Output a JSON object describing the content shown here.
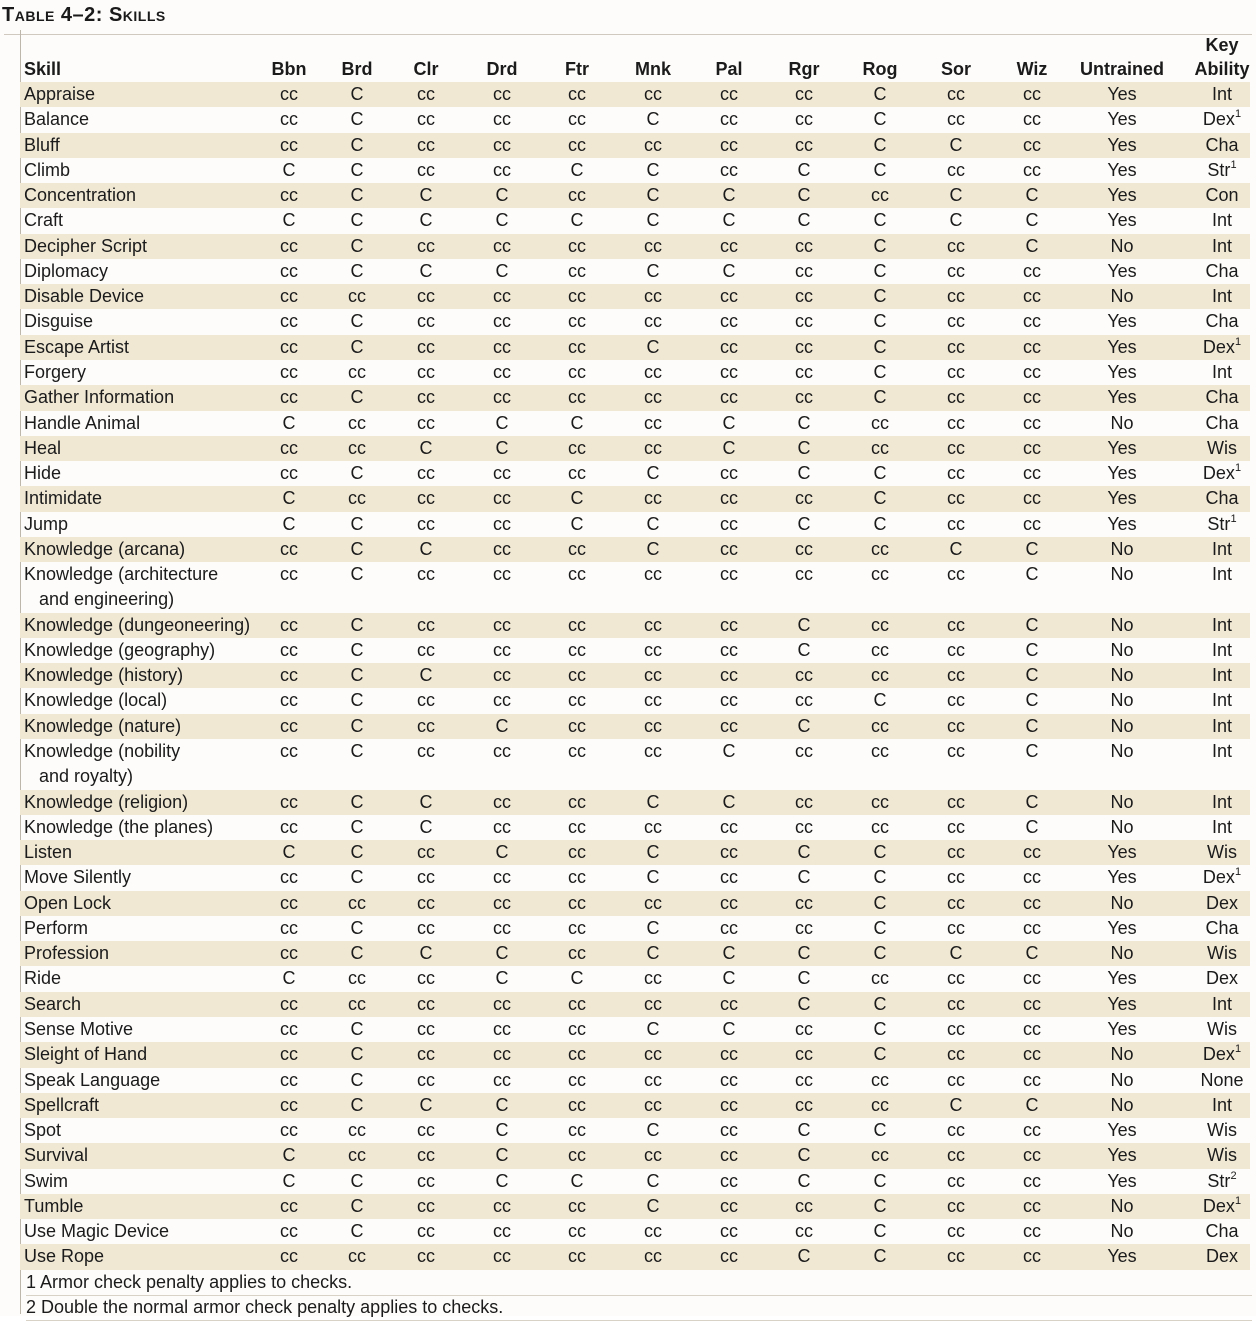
{
  "title": "Table 4–2: Skills",
  "header": {
    "skill": "Skill",
    "classes": [
      "Bbn",
      "Brd",
      "Clr",
      "Drd",
      "Ftr",
      "Mnk",
      "Pal",
      "Rgr",
      "Rog",
      "Sor",
      "Wiz"
    ],
    "untrained": "Untrained",
    "key_ability_line1": "Key",
    "key_ability_line2": "Ability"
  },
  "rows": [
    {
      "skill": "Appraise",
      "cols": [
        "cc",
        "C",
        "cc",
        "cc",
        "cc",
        "cc",
        "cc",
        "cc",
        "C",
        "cc",
        "cc"
      ],
      "untrained": "Yes",
      "key": "Int",
      "sup": ""
    },
    {
      "skill": "Balance",
      "cols": [
        "cc",
        "C",
        "cc",
        "cc",
        "cc",
        "C",
        "cc",
        "cc",
        "C",
        "cc",
        "cc"
      ],
      "untrained": "Yes",
      "key": "Dex",
      "sup": "1"
    },
    {
      "skill": "Bluff",
      "cols": [
        "cc",
        "C",
        "cc",
        "cc",
        "cc",
        "cc",
        "cc",
        "cc",
        "C",
        "C",
        "cc"
      ],
      "untrained": "Yes",
      "key": "Cha",
      "sup": ""
    },
    {
      "skill": "Climb",
      "cols": [
        "C",
        "C",
        "cc",
        "cc",
        "C",
        "C",
        "cc",
        "C",
        "C",
        "cc",
        "cc"
      ],
      "untrained": "Yes",
      "key": "Str",
      "sup": "1"
    },
    {
      "skill": "Concentration",
      "cols": [
        "cc",
        "C",
        "C",
        "C",
        "cc",
        "C",
        "C",
        "C",
        "cc",
        "C",
        "C"
      ],
      "untrained": "Yes",
      "key": "Con",
      "sup": ""
    },
    {
      "skill": "Craft",
      "cols": [
        "C",
        "C",
        "C",
        "C",
        "C",
        "C",
        "C",
        "C",
        "C",
        "C",
        "C"
      ],
      "untrained": "Yes",
      "key": "Int",
      "sup": ""
    },
    {
      "skill": "Decipher Script",
      "cols": [
        "cc",
        "C",
        "cc",
        "cc",
        "cc",
        "cc",
        "cc",
        "cc",
        "C",
        "cc",
        "C"
      ],
      "untrained": "No",
      "key": "Int",
      "sup": ""
    },
    {
      "skill": "Diplomacy",
      "cols": [
        "cc",
        "C",
        "C",
        "C",
        "cc",
        "C",
        "C",
        "cc",
        "C",
        "cc",
        "cc"
      ],
      "untrained": "Yes",
      "key": "Cha",
      "sup": ""
    },
    {
      "skill": "Disable Device",
      "cols": [
        "cc",
        "cc",
        "cc",
        "cc",
        "cc",
        "cc",
        "cc",
        "cc",
        "C",
        "cc",
        "cc"
      ],
      "untrained": "No",
      "key": "Int",
      "sup": ""
    },
    {
      "skill": "Disguise",
      "cols": [
        "cc",
        "C",
        "cc",
        "cc",
        "cc",
        "cc",
        "cc",
        "cc",
        "C",
        "cc",
        "cc"
      ],
      "untrained": "Yes",
      "key": "Cha",
      "sup": ""
    },
    {
      "skill": "Escape Artist",
      "cols": [
        "cc",
        "C",
        "cc",
        "cc",
        "cc",
        "C",
        "cc",
        "cc",
        "C",
        "cc",
        "cc"
      ],
      "untrained": "Yes",
      "key": "Dex",
      "sup": "1"
    },
    {
      "skill": "Forgery",
      "cols": [
        "cc",
        "cc",
        "cc",
        "cc",
        "cc",
        "cc",
        "cc",
        "cc",
        "C",
        "cc",
        "cc"
      ],
      "untrained": "Yes",
      "key": "Int",
      "sup": ""
    },
    {
      "skill": "Gather Information",
      "cols": [
        "cc",
        "C",
        "cc",
        "cc",
        "cc",
        "cc",
        "cc",
        "cc",
        "C",
        "cc",
        "cc"
      ],
      "untrained": "Yes",
      "key": "Cha",
      "sup": ""
    },
    {
      "skill": "Handle Animal",
      "cols": [
        "C",
        "cc",
        "cc",
        "C",
        "C",
        "cc",
        "C",
        "C",
        "cc",
        "cc",
        "cc"
      ],
      "untrained": "No",
      "key": "Cha",
      "sup": ""
    },
    {
      "skill": "Heal",
      "cols": [
        "cc",
        "cc",
        "C",
        "C",
        "cc",
        "cc",
        "C",
        "C",
        "cc",
        "cc",
        "cc"
      ],
      "untrained": "Yes",
      "key": "Wis",
      "sup": ""
    },
    {
      "skill": "Hide",
      "cols": [
        "cc",
        "C",
        "cc",
        "cc",
        "cc",
        "C",
        "cc",
        "C",
        "C",
        "cc",
        "cc"
      ],
      "untrained": "Yes",
      "key": "Dex",
      "sup": "1"
    },
    {
      "skill": "Intimidate",
      "cols": [
        "C",
        "cc",
        "cc",
        "cc",
        "C",
        "cc",
        "cc",
        "cc",
        "C",
        "cc",
        "cc"
      ],
      "untrained": "Yes",
      "key": "Cha",
      "sup": ""
    },
    {
      "skill": "Jump",
      "cols": [
        "C",
        "C",
        "cc",
        "cc",
        "C",
        "C",
        "cc",
        "C",
        "C",
        "cc",
        "cc"
      ],
      "untrained": "Yes",
      "key": "Str",
      "sup": "1"
    },
    {
      "skill": "Knowledge (arcana)",
      "cols": [
        "cc",
        "C",
        "C",
        "cc",
        "cc",
        "C",
        "cc",
        "cc",
        "cc",
        "C",
        "C"
      ],
      "untrained": "No",
      "key": "Int",
      "sup": ""
    },
    {
      "skill": "Knowledge (architecture",
      "skill2": "and engineering)",
      "cols": [
        "cc",
        "C",
        "cc",
        "cc",
        "cc",
        "cc",
        "cc",
        "cc",
        "cc",
        "cc",
        "C"
      ],
      "untrained": "No",
      "key": "Int",
      "sup": ""
    },
    {
      "skill": "Knowledge (dungeoneering)",
      "cols": [
        "cc",
        "C",
        "cc",
        "cc",
        "cc",
        "cc",
        "cc",
        "C",
        "cc",
        "cc",
        "C"
      ],
      "untrained": "No",
      "key": "Int",
      "sup": ""
    },
    {
      "skill": "Knowledge (geography)",
      "cols": [
        "cc",
        "C",
        "cc",
        "cc",
        "cc",
        "cc",
        "cc",
        "C",
        "cc",
        "cc",
        "C"
      ],
      "untrained": "No",
      "key": "Int",
      "sup": ""
    },
    {
      "skill": "Knowledge (history)",
      "cols": [
        "cc",
        "C",
        "C",
        "cc",
        "cc",
        "cc",
        "cc",
        "cc",
        "cc",
        "cc",
        "C"
      ],
      "untrained": "No",
      "key": "Int",
      "sup": ""
    },
    {
      "skill": "Knowledge (local)",
      "cols": [
        "cc",
        "C",
        "cc",
        "cc",
        "cc",
        "cc",
        "cc",
        "cc",
        "C",
        "cc",
        "C"
      ],
      "untrained": "No",
      "key": "Int",
      "sup": ""
    },
    {
      "skill": "Knowledge (nature)",
      "cols": [
        "cc",
        "C",
        "cc",
        "C",
        "cc",
        "cc",
        "cc",
        "C",
        "cc",
        "cc",
        "C"
      ],
      "untrained": "No",
      "key": "Int",
      "sup": ""
    },
    {
      "skill": "Knowledge (nobility",
      "skill2": "and royalty)",
      "cols": [
        "cc",
        "C",
        "cc",
        "cc",
        "cc",
        "cc",
        "C",
        "cc",
        "cc",
        "cc",
        "C"
      ],
      "untrained": "No",
      "key": "Int",
      "sup": ""
    },
    {
      "skill": "Knowledge (religion)",
      "cols": [
        "cc",
        "C",
        "C",
        "cc",
        "cc",
        "C",
        "C",
        "cc",
        "cc",
        "cc",
        "C"
      ],
      "untrained": "No",
      "key": "Int",
      "sup": ""
    },
    {
      "skill": "Knowledge (the planes)",
      "cols": [
        "cc",
        "C",
        "C",
        "cc",
        "cc",
        "cc",
        "cc",
        "cc",
        "cc",
        "cc",
        "C"
      ],
      "untrained": "No",
      "key": "Int",
      "sup": ""
    },
    {
      "skill": "Listen",
      "cols": [
        "C",
        "C",
        "cc",
        "C",
        "cc",
        "C",
        "cc",
        "C",
        "C",
        "cc",
        "cc"
      ],
      "untrained": "Yes",
      "key": "Wis",
      "sup": ""
    },
    {
      "skill": "Move Silently",
      "cols": [
        "cc",
        "C",
        "cc",
        "cc",
        "cc",
        "C",
        "cc",
        "C",
        "C",
        "cc",
        "cc"
      ],
      "untrained": "Yes",
      "key": "Dex",
      "sup": "1"
    },
    {
      "skill": "Open Lock",
      "cols": [
        "cc",
        "cc",
        "cc",
        "cc",
        "cc",
        "cc",
        "cc",
        "cc",
        "C",
        "cc",
        "cc"
      ],
      "untrained": "No",
      "key": "Dex",
      "sup": ""
    },
    {
      "skill": "Perform",
      "cols": [
        "cc",
        "C",
        "cc",
        "cc",
        "cc",
        "C",
        "cc",
        "cc",
        "C",
        "cc",
        "cc"
      ],
      "untrained": "Yes",
      "key": "Cha",
      "sup": ""
    },
    {
      "skill": "Profession",
      "cols": [
        "cc",
        "C",
        "C",
        "C",
        "cc",
        "C",
        "C",
        "C",
        "C",
        "C",
        "C"
      ],
      "untrained": "No",
      "key": "Wis",
      "sup": ""
    },
    {
      "skill": "Ride",
      "cols": [
        "C",
        "cc",
        "cc",
        "C",
        "C",
        "cc",
        "C",
        "C",
        "cc",
        "cc",
        "cc"
      ],
      "untrained": "Yes",
      "key": "Dex",
      "sup": ""
    },
    {
      "skill": "Search",
      "cols": [
        "cc",
        "cc",
        "cc",
        "cc",
        "cc",
        "cc",
        "cc",
        "C",
        "C",
        "cc",
        "cc"
      ],
      "untrained": "Yes",
      "key": "Int",
      "sup": ""
    },
    {
      "skill": "Sense Motive",
      "cols": [
        "cc",
        "C",
        "cc",
        "cc",
        "cc",
        "C",
        "C",
        "cc",
        "C",
        "cc",
        "cc"
      ],
      "untrained": "Yes",
      "key": "Wis",
      "sup": ""
    },
    {
      "skill": "Sleight of Hand",
      "cols": [
        "cc",
        "C",
        "cc",
        "cc",
        "cc",
        "cc",
        "cc",
        "cc",
        "C",
        "cc",
        "cc"
      ],
      "untrained": "No",
      "key": "Dex",
      "sup": "1"
    },
    {
      "skill": "Speak Language",
      "cols": [
        "cc",
        "C",
        "cc",
        "cc",
        "cc",
        "cc",
        "cc",
        "cc",
        "cc",
        "cc",
        "cc"
      ],
      "untrained": "No",
      "key": "None",
      "sup": ""
    },
    {
      "skill": "Spellcraft",
      "cols": [
        "cc",
        "C",
        "C",
        "C",
        "cc",
        "cc",
        "cc",
        "cc",
        "cc",
        "C",
        "C"
      ],
      "untrained": "No",
      "key": "Int",
      "sup": ""
    },
    {
      "skill": "Spot",
      "cols": [
        "cc",
        "cc",
        "cc",
        "C",
        "cc",
        "C",
        "cc",
        "C",
        "C",
        "cc",
        "cc"
      ],
      "untrained": "Yes",
      "key": "Wis",
      "sup": ""
    },
    {
      "skill": "Survival",
      "cols": [
        "C",
        "cc",
        "cc",
        "C",
        "cc",
        "cc",
        "cc",
        "C",
        "cc",
        "cc",
        "cc"
      ],
      "untrained": "Yes",
      "key": "Wis",
      "sup": ""
    },
    {
      "skill": "Swim",
      "cols": [
        "C",
        "C",
        "cc",
        "C",
        "C",
        "C",
        "cc",
        "C",
        "C",
        "cc",
        "cc"
      ],
      "untrained": "Yes",
      "key": "Str",
      "sup": "2"
    },
    {
      "skill": "Tumble",
      "cols": [
        "cc",
        "C",
        "cc",
        "cc",
        "cc",
        "C",
        "cc",
        "cc",
        "C",
        "cc",
        "cc"
      ],
      "untrained": "No",
      "key": "Dex",
      "sup": "1"
    },
    {
      "skill": "Use Magic Device",
      "cols": [
        "cc",
        "C",
        "cc",
        "cc",
        "cc",
        "cc",
        "cc",
        "cc",
        "C",
        "cc",
        "cc"
      ],
      "untrained": "No",
      "key": "Cha",
      "sup": ""
    },
    {
      "skill": "Use Rope",
      "cols": [
        "cc",
        "cc",
        "cc",
        "cc",
        "cc",
        "cc",
        "cc",
        "C",
        "C",
        "cc",
        "cc"
      ],
      "untrained": "Yes",
      "key": "Dex",
      "sup": ""
    }
  ],
  "footnotes": [
    "1 Armor check penalty applies to checks.",
    "2 Double the normal armor check penalty applies to checks."
  ],
  "colors": {
    "shaded_row": "#f1e8d4",
    "text": "#1b1b1b"
  }
}
